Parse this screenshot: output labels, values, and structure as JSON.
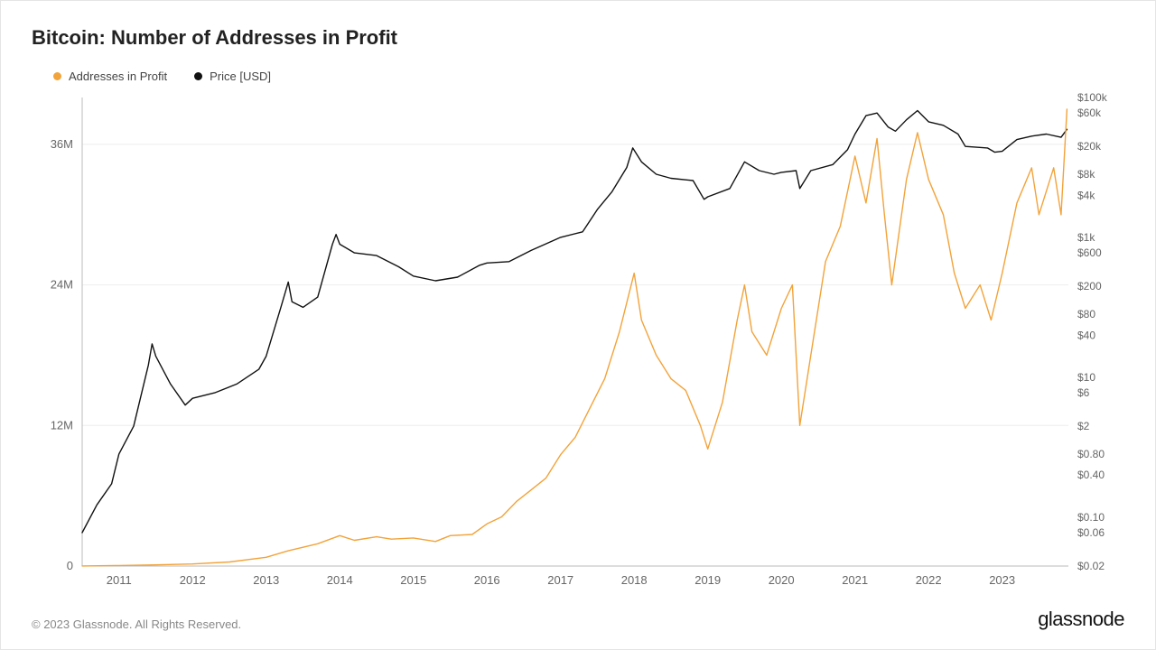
{
  "title": "Bitcoin: Number of Addresses in Profit",
  "copyright": "© 2023 Glassnode. All Rights Reserved.",
  "brand": "glassnode",
  "legend": {
    "series1": {
      "label": "Addresses in Profit",
      "color": "#f2a33a"
    },
    "series2": {
      "label": "Price [USD]",
      "color": "#111111"
    }
  },
  "chart": {
    "background_color": "#ffffff",
    "grid_color": "#eeeeee",
    "axis_text_color": "#666666",
    "line_width": 1.4,
    "x": {
      "min": 2010.5,
      "max": 2023.9,
      "ticks": [
        2011,
        2012,
        2013,
        2014,
        2015,
        2016,
        2017,
        2018,
        2019,
        2020,
        2021,
        2022,
        2023
      ]
    },
    "y_left": {
      "type": "linear",
      "min": 0,
      "max": 40,
      "ticks": [
        0,
        12,
        24,
        36
      ],
      "tick_labels": [
        "0",
        "12M",
        "24M",
        "36M"
      ]
    },
    "y_right": {
      "type": "log",
      "min": 0.02,
      "max": 100000,
      "ticks": [
        0.02,
        0.06,
        0.1,
        0.4,
        0.8,
        2,
        6,
        10,
        40,
        80,
        200,
        600,
        1000,
        4000,
        8000,
        20000,
        60000,
        100000
      ],
      "tick_labels": [
        "$0.02",
        "$0.06",
        "$0.10",
        "$0.40",
        "$0.80",
        "$2",
        "$6",
        "$10",
        "$40",
        "$80",
        "$200",
        "$600",
        "$1k",
        "$4k",
        "$8k",
        "$20k",
        "$60k",
        "$100k"
      ]
    },
    "series_addresses": {
      "color": "#f2a33a",
      "points": [
        [
          2010.5,
          0.01
        ],
        [
          2011.0,
          0.05
        ],
        [
          2011.5,
          0.1
        ],
        [
          2012.0,
          0.18
        ],
        [
          2012.5,
          0.35
        ],
        [
          2013.0,
          0.75
        ],
        [
          2013.3,
          1.3
        ],
        [
          2013.5,
          1.6
        ],
        [
          2013.7,
          1.9
        ],
        [
          2014.0,
          2.6
        ],
        [
          2014.2,
          2.2
        ],
        [
          2014.5,
          2.5
        ],
        [
          2014.7,
          2.3
        ],
        [
          2015.0,
          2.4
        ],
        [
          2015.3,
          2.1
        ],
        [
          2015.5,
          2.6
        ],
        [
          2015.8,
          2.7
        ],
        [
          2016.0,
          3.6
        ],
        [
          2016.2,
          4.2
        ],
        [
          2016.4,
          5.5
        ],
        [
          2016.6,
          6.5
        ],
        [
          2016.8,
          7.5
        ],
        [
          2017.0,
          9.5
        ],
        [
          2017.2,
          11.0
        ],
        [
          2017.4,
          13.5
        ],
        [
          2017.6,
          16.0
        ],
        [
          2017.8,
          20.0
        ],
        [
          2018.0,
          25.0
        ],
        [
          2018.1,
          21.0
        ],
        [
          2018.3,
          18.0
        ],
        [
          2018.5,
          16.0
        ],
        [
          2018.7,
          15.0
        ],
        [
          2018.9,
          12.0
        ],
        [
          2019.0,
          10.0
        ],
        [
          2019.2,
          14.0
        ],
        [
          2019.4,
          21.0
        ],
        [
          2019.5,
          24.0
        ],
        [
          2019.6,
          20.0
        ],
        [
          2019.8,
          18.0
        ],
        [
          2020.0,
          22.0
        ],
        [
          2020.15,
          24.0
        ],
        [
          2020.25,
          12.0
        ],
        [
          2020.4,
          18.0
        ],
        [
          2020.6,
          26.0
        ],
        [
          2020.8,
          29.0
        ],
        [
          2021.0,
          35.0
        ],
        [
          2021.15,
          31.0
        ],
        [
          2021.3,
          36.5
        ],
        [
          2021.4,
          30.0
        ],
        [
          2021.5,
          24.0
        ],
        [
          2021.7,
          33.0
        ],
        [
          2021.85,
          37.0
        ],
        [
          2022.0,
          33.0
        ],
        [
          2022.2,
          30.0
        ],
        [
          2022.35,
          25.0
        ],
        [
          2022.5,
          22.0
        ],
        [
          2022.7,
          24.0
        ],
        [
          2022.85,
          21.0
        ],
        [
          2023.0,
          25.0
        ],
        [
          2023.2,
          31.0
        ],
        [
          2023.4,
          34.0
        ],
        [
          2023.5,
          30.0
        ],
        [
          2023.7,
          34.0
        ],
        [
          2023.8,
          30.0
        ],
        [
          2023.88,
          39.0
        ]
      ]
    },
    "series_price": {
      "color": "#111111",
      "points": [
        [
          2010.5,
          0.06
        ],
        [
          2010.7,
          0.15
        ],
        [
          2010.9,
          0.3
        ],
        [
          2011.0,
          0.8
        ],
        [
          2011.2,
          2.0
        ],
        [
          2011.4,
          15.0
        ],
        [
          2011.45,
          30.0
        ],
        [
          2011.5,
          20.0
        ],
        [
          2011.7,
          8.0
        ],
        [
          2011.9,
          4.0
        ],
        [
          2012.0,
          5.0
        ],
        [
          2012.3,
          6.0
        ],
        [
          2012.6,
          8.0
        ],
        [
          2012.9,
          13.0
        ],
        [
          2013.0,
          20.0
        ],
        [
          2013.2,
          100.0
        ],
        [
          2013.3,
          230.0
        ],
        [
          2013.35,
          120.0
        ],
        [
          2013.5,
          100.0
        ],
        [
          2013.7,
          140.0
        ],
        [
          2013.9,
          800.0
        ],
        [
          2013.95,
          1100.0
        ],
        [
          2014.0,
          800.0
        ],
        [
          2014.2,
          600.0
        ],
        [
          2014.5,
          550.0
        ],
        [
          2014.8,
          380.0
        ],
        [
          2015.0,
          280.0
        ],
        [
          2015.3,
          240.0
        ],
        [
          2015.6,
          270.0
        ],
        [
          2015.9,
          400.0
        ],
        [
          2016.0,
          430.0
        ],
        [
          2016.3,
          450.0
        ],
        [
          2016.6,
          650.0
        ],
        [
          2016.9,
          900.0
        ],
        [
          2017.0,
          1000.0
        ],
        [
          2017.3,
          1200.0
        ],
        [
          2017.5,
          2500.0
        ],
        [
          2017.7,
          4500.0
        ],
        [
          2017.9,
          10000.0
        ],
        [
          2017.98,
          19000.0
        ],
        [
          2018.1,
          12000.0
        ],
        [
          2018.3,
          8000.0
        ],
        [
          2018.5,
          7000.0
        ],
        [
          2018.8,
          6500.0
        ],
        [
          2018.95,
          3500.0
        ],
        [
          2019.0,
          3800.0
        ],
        [
          2019.3,
          5000.0
        ],
        [
          2019.5,
          12000.0
        ],
        [
          2019.7,
          9000.0
        ],
        [
          2019.9,
          8000.0
        ],
        [
          2020.0,
          8500.0
        ],
        [
          2020.2,
          9000.0
        ],
        [
          2020.25,
          5000.0
        ],
        [
          2020.4,
          9000.0
        ],
        [
          2020.7,
          11000.0
        ],
        [
          2020.9,
          18000.0
        ],
        [
          2021.0,
          30000.0
        ],
        [
          2021.15,
          55000.0
        ],
        [
          2021.3,
          60000.0
        ],
        [
          2021.45,
          38000.0
        ],
        [
          2021.55,
          33000.0
        ],
        [
          2021.7,
          48000.0
        ],
        [
          2021.85,
          65000.0
        ],
        [
          2022.0,
          45000.0
        ],
        [
          2022.2,
          40000.0
        ],
        [
          2022.4,
          30000.0
        ],
        [
          2022.5,
          20000.0
        ],
        [
          2022.8,
          19000.0
        ],
        [
          2022.9,
          16500.0
        ],
        [
          2023.0,
          17000.0
        ],
        [
          2023.2,
          25000.0
        ],
        [
          2023.4,
          28000.0
        ],
        [
          2023.6,
          30000.0
        ],
        [
          2023.8,
          27000.0
        ],
        [
          2023.88,
          35000.0
        ]
      ]
    }
  }
}
